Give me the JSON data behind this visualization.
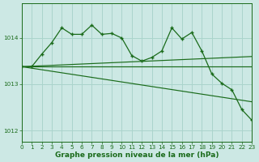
{
  "bg_color": "#cce8e4",
  "grid_color": "#aad4cc",
  "line_color": "#1a6b1a",
  "xlabel": "Graphe pression niveau de la mer (hPa)",
  "xlabel_fontsize": 6.5,
  "xlim": [
    0,
    23
  ],
  "ylim": [
    1011.75,
    1014.75
  ],
  "yticks": [
    1012,
    1013,
    1014
  ],
  "xticks": [
    0,
    1,
    2,
    3,
    4,
    5,
    6,
    7,
    8,
    9,
    10,
    11,
    12,
    13,
    14,
    15,
    16,
    17,
    18,
    19,
    20,
    21,
    22,
    23
  ],
  "trend1_x": [
    0,
    23
  ],
  "trend1_y": [
    1013.38,
    1013.6
  ],
  "trend2_x": [
    0,
    23
  ],
  "trend2_y": [
    1013.38,
    1013.38
  ],
  "trend3_x": [
    0,
    23
  ],
  "trend3_y": [
    1013.38,
    1012.62
  ],
  "main_x": [
    0,
    1,
    2,
    3,
    4,
    5,
    6,
    7,
    8,
    9,
    10,
    11,
    12,
    13,
    14,
    15,
    16,
    17,
    18,
    19,
    20,
    21,
    22,
    23
  ],
  "main_y": [
    1013.38,
    1013.38,
    1013.65,
    1013.9,
    1014.22,
    1014.08,
    1014.08,
    1014.28,
    1014.08,
    1014.1,
    1014.0,
    1013.62,
    1013.5,
    1013.58,
    1013.72,
    1014.22,
    1013.98,
    1014.12,
    1013.72,
    1013.22,
    1013.02,
    1012.88,
    1012.45,
    1012.22
  ]
}
